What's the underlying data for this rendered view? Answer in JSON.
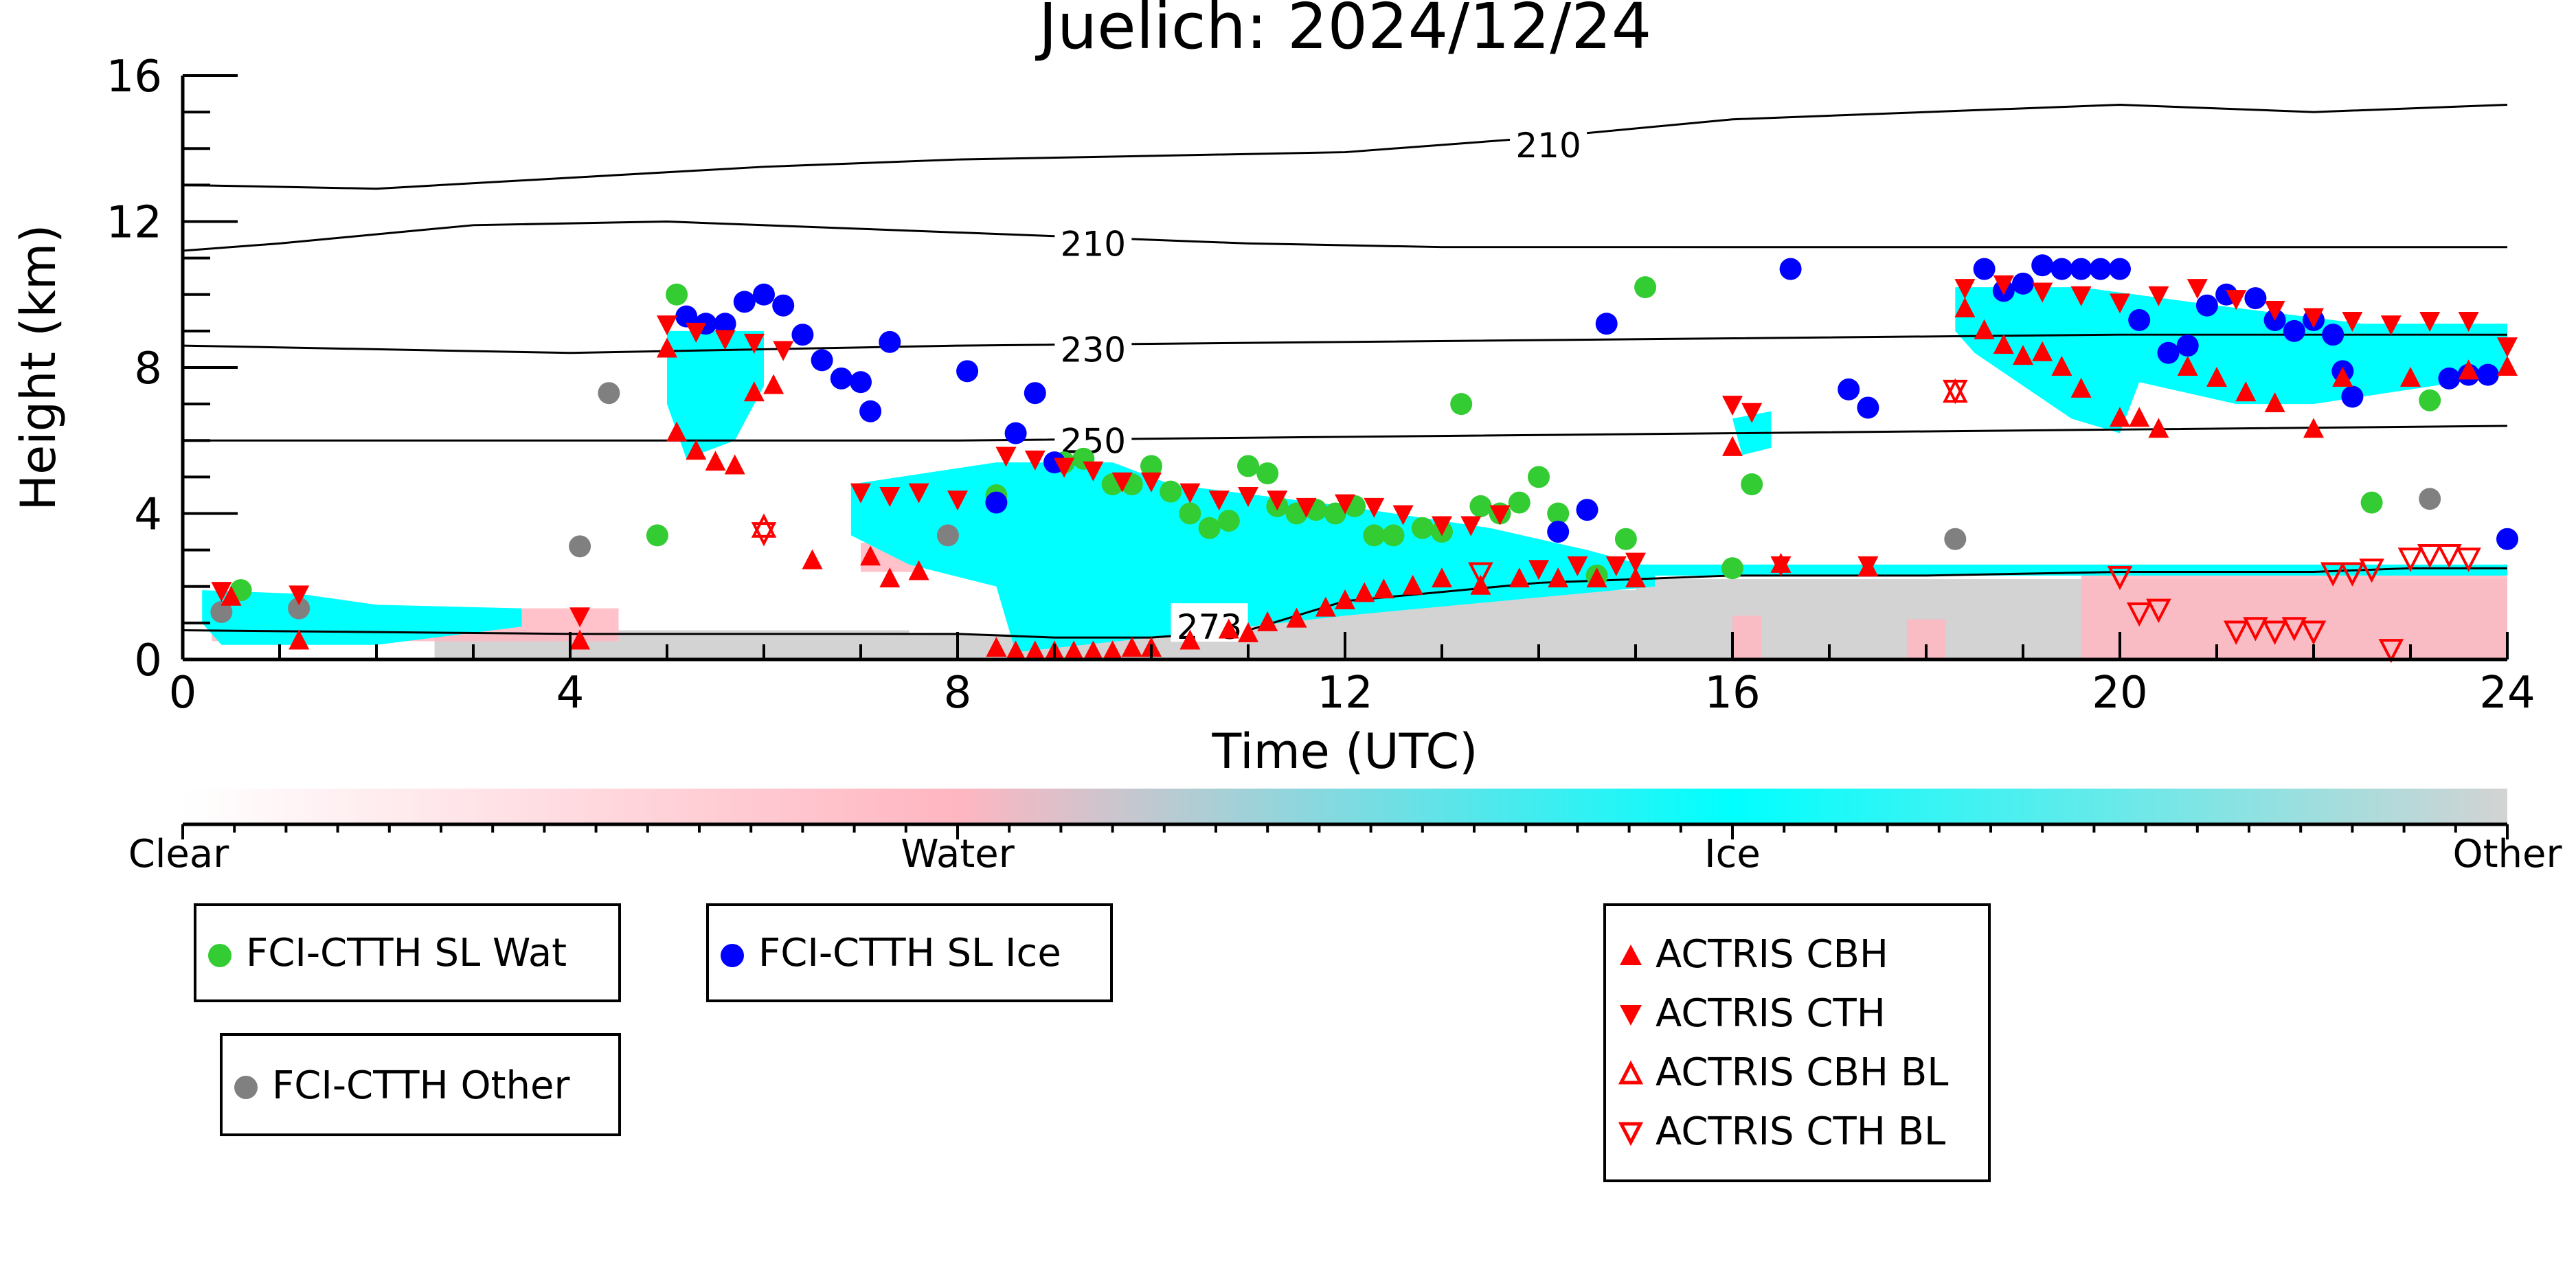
{
  "chart_data": {
    "type": "scatter",
    "title": "Juelich: 2024/12/24",
    "xlabel": "Time (UTC)",
    "ylabel": "Height (km)",
    "xlim": [
      0,
      24
    ],
    "ylim": [
      0,
      16
    ],
    "xticks": [
      0,
      4,
      8,
      12,
      16,
      20,
      24
    ],
    "yticks": [
      0,
      4,
      8,
      12,
      16
    ],
    "colorbar": {
      "labels": [
        "Clear",
        "Water",
        "Ice",
        "Other"
      ],
      "colors": [
        "#ffffff",
        "#ffb6c1",
        "#00ffff",
        "#d3d3d3"
      ]
    },
    "colors": {
      "fci_wat": "#33cc33",
      "fci_ice": "#0000ff",
      "fci_other": "#808080",
      "actris": "#ff0000",
      "ice_mask": "#00ffff",
      "water_mask": "#ffb6c1",
      "other_mask": "#d3d3d3"
    },
    "isotherms": [
      {
        "label": "210",
        "x": [
          0,
          2,
          4,
          6,
          8,
          10,
          12,
          14,
          16,
          18,
          20,
          22,
          24
        ],
        "y": [
          13.0,
          12.9,
          13.2,
          13.5,
          13.7,
          13.8,
          13.9,
          14.3,
          14.8,
          15.0,
          15.2,
          15.0,
          15.2
        ]
      },
      {
        "label": "210",
        "x": [
          0,
          1,
          3,
          5,
          7,
          9,
          11,
          13,
          16,
          19,
          22,
          24
        ],
        "y": [
          11.2,
          11.4,
          11.9,
          12.0,
          11.8,
          11.6,
          11.4,
          11.3,
          11.3,
          11.3,
          11.3,
          11.3
        ]
      },
      {
        "label": "230",
        "x": [
          0,
          4,
          8,
          12,
          16,
          20,
          24
        ],
        "y": [
          8.6,
          8.4,
          8.6,
          8.7,
          8.8,
          8.9,
          8.9
        ]
      },
      {
        "label": "250",
        "x": [
          0,
          4,
          8,
          12,
          16,
          20,
          24
        ],
        "y": [
          6.0,
          6.0,
          6.0,
          6.1,
          6.2,
          6.3,
          6.4
        ]
      },
      {
        "label": "273",
        "x": [
          0,
          4,
          8,
          9,
          10,
          11,
          12,
          14,
          16,
          18,
          20,
          22,
          23,
          24
        ],
        "y": [
          0.8,
          0.7,
          0.7,
          0.6,
          0.6,
          0.8,
          1.6,
          2.1,
          2.3,
          2.3,
          2.4,
          2.4,
          2.5,
          2.5
        ]
      }
    ],
    "contour_labels": [
      {
        "text": "210",
        "x": 14.1,
        "y": 14.1
      },
      {
        "text": "210",
        "x": 9.4,
        "y": 11.4
      },
      {
        "text": "230",
        "x": 9.4,
        "y": 8.5
      },
      {
        "text": "250",
        "x": 9.4,
        "y": 6.0
      },
      {
        "text": "273",
        "x": 10.6,
        "y": 0.9
      }
    ],
    "series": [
      {
        "name": "FCI-CTTH SL Wat",
        "marker": "circle",
        "color": "#33cc33",
        "x": [
          0.6,
          4.9,
          5.1,
          8.4,
          9.1,
          9.3,
          9.6,
          9.8,
          10.0,
          10.2,
          10.4,
          10.6,
          10.8,
          11.0,
          11.2,
          11.3,
          11.5,
          11.7,
          11.9,
          12.1,
          12.3,
          12.5,
          12.8,
          13.0,
          13.2,
          13.4,
          13.6,
          13.8,
          14.0,
          14.2,
          14.6,
          14.9,
          15.1,
          16.0,
          16.2,
          22.6,
          23.2
        ],
        "y": [
          1.9,
          3.4,
          10.0,
          4.5,
          5.4,
          5.5,
          4.8,
          4.8,
          5.3,
          4.6,
          4.0,
          3.6,
          3.8,
          5.3,
          5.1,
          4.2,
          4.0,
          4.1,
          4.0,
          4.2,
          3.4,
          3.4,
          3.6,
          3.5,
          7.0,
          4.2,
          4.0,
          4.3,
          5.0,
          4.0,
          2.3,
          3.3,
          10.2,
          2.5,
          4.8,
          4.3,
          7.1
        ]
      },
      {
        "name": "FCI-CTTH SL Ice",
        "marker": "circle",
        "color": "#0000ff",
        "x": [
          5.2,
          5.4,
          5.6,
          5.8,
          6.0,
          6.2,
          6.4,
          6.6,
          6.8,
          7.0,
          7.1,
          7.3,
          8.1,
          8.4,
          8.6,
          8.8,
          9.0,
          14.2,
          14.5,
          14.7,
          16.6,
          17.2,
          17.4,
          18.6,
          18.8,
          19.0,
          19.2,
          19.4,
          19.6,
          19.8,
          20.0,
          20.2,
          20.5,
          20.7,
          20.9,
          21.1,
          21.4,
          21.6,
          21.8,
          22.0,
          22.2,
          22.3,
          22.4,
          23.4,
          23.6,
          23.8,
          24.0
        ],
        "y": [
          9.4,
          9.2,
          9.2,
          9.8,
          10.0,
          9.7,
          8.9,
          8.2,
          7.7,
          7.6,
          6.8,
          8.7,
          7.9,
          4.3,
          6.2,
          7.3,
          5.4,
          3.5,
          4.1,
          9.2,
          10.7,
          7.4,
          6.9,
          10.7,
          10.1,
          10.3,
          10.8,
          10.7,
          10.7,
          10.7,
          10.7,
          9.3,
          8.4,
          8.6,
          9.7,
          10.0,
          9.9,
          9.3,
          9.0,
          9.3,
          8.9,
          7.9,
          7.2,
          7.7,
          7.8,
          7.8,
          3.3
        ]
      },
      {
        "name": "FCI-CTTH Other",
        "marker": "circle",
        "color": "#808080",
        "x": [
          0.4,
          1.2,
          4.1,
          4.4,
          7.9,
          18.3,
          23.2
        ],
        "y": [
          1.3,
          1.4,
          3.1,
          7.3,
          3.4,
          3.3,
          4.4
        ]
      },
      {
        "name": "ACTRIS CBH",
        "marker": "triangle-up",
        "color": "#ff0000",
        "filled": true,
        "x": [
          0.5,
          1.2,
          4.1,
          5.0,
          5.1,
          5.3,
          5.5,
          5.7,
          5.9,
          6.1,
          6.5,
          7.1,
          7.3,
          7.6,
          8.4,
          8.6,
          8.8,
          9.0,
          9.2,
          9.4,
          9.6,
          9.8,
          10.0,
          10.4,
          10.8,
          11.0,
          11.2,
          11.5,
          11.8,
          12.0,
          12.2,
          12.4,
          12.7,
          13.0,
          13.4,
          13.8,
          14.2,
          14.6,
          15.0,
          16.0,
          16.5,
          17.4,
          18.4,
          18.6,
          18.8,
          19.0,
          19.2,
          19.4,
          19.6,
          20.0,
          20.2,
          20.4,
          20.7,
          21.0,
          21.3,
          21.6,
          22.0,
          22.3,
          23.0,
          23.6,
          24.0
        ],
        "y": [
          1.7,
          0.5,
          0.5,
          8.5,
          6.2,
          5.7,
          5.4,
          5.3,
          7.3,
          7.5,
          2.7,
          2.8,
          2.2,
          2.4,
          0.3,
          0.2,
          0.2,
          0.2,
          0.2,
          0.2,
          0.2,
          0.3,
          0.3,
          0.5,
          0.8,
          0.7,
          1.0,
          1.1,
          1.4,
          1.6,
          1.8,
          1.9,
          2.0,
          2.2,
          2.0,
          2.2,
          2.2,
          2.2,
          2.2,
          5.8,
          2.6,
          2.5,
          9.6,
          9.0,
          8.6,
          8.3,
          8.4,
          8.0,
          7.4,
          6.6,
          6.6,
          6.3,
          8.0,
          7.7,
          7.3,
          7.0,
          6.3,
          7.7,
          7.7,
          7.9,
          8.0
        ]
      },
      {
        "name": "ACTRIS CTH",
        "marker": "triangle-down",
        "color": "#ff0000",
        "filled": true,
        "x": [
          0.4,
          1.2,
          4.1,
          5.0,
          5.3,
          5.6,
          5.9,
          6.2,
          7.0,
          7.3,
          7.6,
          8.0,
          8.5,
          8.8,
          9.1,
          9.4,
          9.7,
          10.0,
          10.4,
          10.7,
          11.0,
          11.3,
          11.6,
          12.0,
          12.3,
          12.6,
          13.0,
          13.3,
          13.6,
          14.0,
          14.4,
          14.8,
          15.0,
          16.0,
          16.2,
          16.5,
          17.4,
          18.4,
          18.8,
          19.2,
          19.6,
          20.0,
          20.4,
          20.8,
          21.2,
          21.6,
          22.0,
          22.4,
          22.8,
          23.2,
          23.6,
          24.0
        ],
        "y": [
          1.9,
          1.8,
          1.2,
          9.2,
          9.0,
          8.8,
          8.7,
          8.5,
          4.6,
          4.5,
          4.6,
          4.4,
          5.6,
          5.5,
          5.3,
          5.2,
          4.9,
          4.9,
          4.6,
          4.4,
          4.5,
          4.4,
          4.2,
          4.3,
          4.2,
          4.0,
          3.7,
          3.7,
          4.0,
          2.5,
          2.6,
          2.6,
          2.7,
          7.0,
          6.8,
          2.6,
          2.6,
          10.2,
          10.3,
          10.1,
          10.0,
          9.8,
          10.0,
          10.2,
          9.9,
          9.6,
          9.4,
          9.3,
          9.2,
          9.3,
          9.3,
          8.6
        ]
      },
      {
        "name": "ACTRIS CBH BL",
        "marker": "triangle-up",
        "color": "#ff0000",
        "filled": false,
        "x": [
          6.0,
          18.3
        ],
        "y": [
          3.6,
          7.3
        ]
      },
      {
        "name": "ACTRIS CTH BL",
        "marker": "triangle-down",
        "color": "#ff0000",
        "filled": false,
        "x": [
          6.0,
          13.4,
          18.3,
          20.0,
          20.2,
          20.4,
          21.2,
          21.4,
          21.6,
          21.8,
          22.0,
          22.2,
          22.4,
          22.6,
          22.8,
          23.0,
          23.2,
          23.4,
          23.6
        ],
        "y": [
          3.5,
          2.4,
          7.4,
          2.3,
          1.3,
          1.4,
          0.8,
          0.9,
          0.8,
          0.9,
          0.8,
          2.4,
          2.4,
          2.5,
          0.3,
          2.8,
          2.9,
          2.9,
          2.8
        ]
      }
    ],
    "legend": {
      "fci_wat": "FCI-CTTH SL Wat",
      "fci_ice": "FCI-CTTH SL Ice",
      "fci_other": "FCI-CTTH Other",
      "actris_cbh": "ACTRIS CBH",
      "actris_cth": "ACTRIS CTH",
      "actris_cbh_bl": "ACTRIS CBH BL",
      "actris_cth_bl": "ACTRIS CTH BL"
    },
    "grid": false
  }
}
